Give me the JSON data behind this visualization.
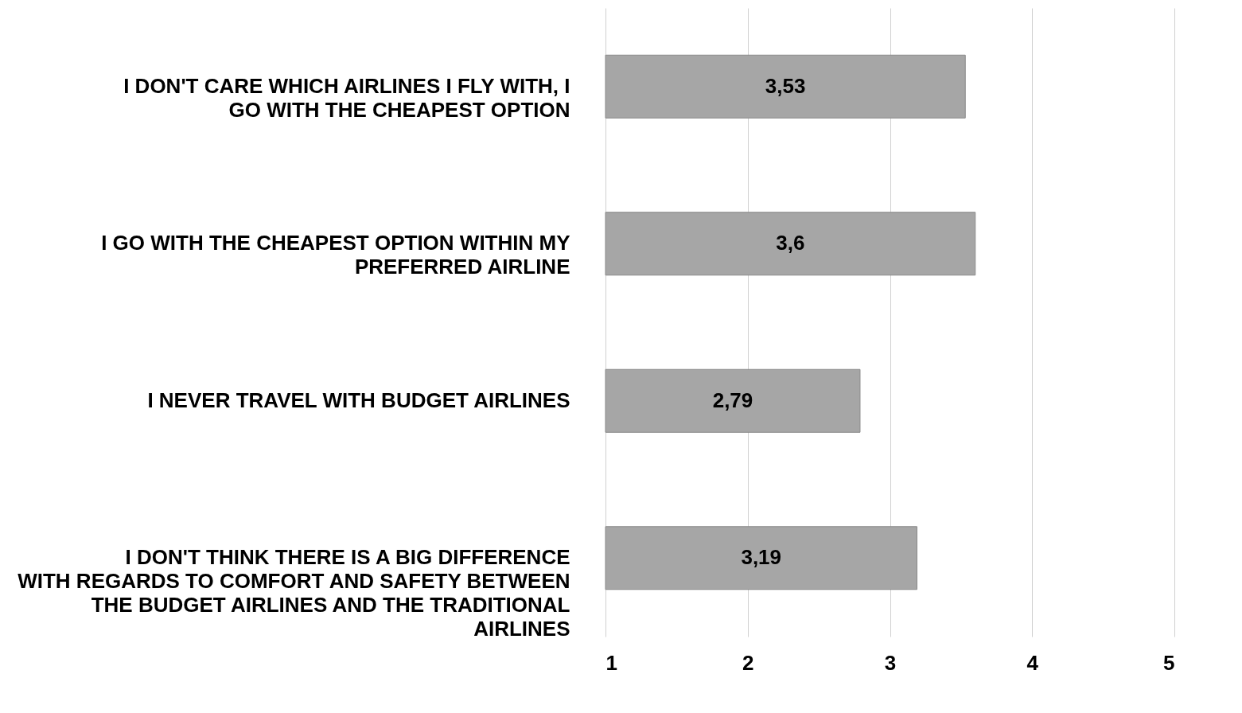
{
  "chart_data": {
    "type": "bar",
    "orientation": "horizontal",
    "categories": [
      "I DON'T CARE WHICH AIRLINES I FLY WITH, I GO WITH THE CHEAPEST OPTION",
      "I GO WITH THE CHEAPEST OPTION WITHIN MY PREFERRED AIRLINE",
      "I NEVER TRAVEL WITH BUDGET AIRLINES",
      "I DON'T THINK THERE IS A BIG DIFFERENCE WITH REGARDS TO COMFORT AND SAFETY BETWEEN THE BUDGET AIRLINES AND THE TRADITIONAL AIRLINES"
    ],
    "values": [
      3.53,
      3.6,
      2.79,
      3.19
    ],
    "value_labels": [
      "3,53",
      "3,6",
      "2,79",
      "3,19"
    ],
    "color": "#a6a6a6",
    "xlim": [
      1,
      5
    ],
    "xticks": [
      1,
      2,
      3,
      4,
      5
    ],
    "grid": "x"
  }
}
